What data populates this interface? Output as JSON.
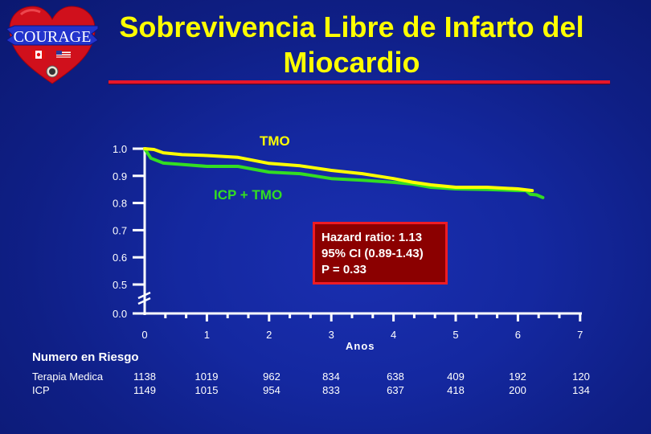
{
  "slide": {
    "title_line1": "Sobrevivencia Libre de Infarto del",
    "title_line2": "Miocardio",
    "logo": {
      "text": "COURAGE",
      "icon": "heart-logo-icon",
      "flags": [
        "canada-flag-icon",
        "usa-flag-icon"
      ],
      "seal": "va-seal-icon"
    }
  },
  "colors": {
    "background": "#1428a0",
    "title": "#ffff00",
    "underline": "#e8162a",
    "tmo": "#ffff00",
    "icp_tmo": "#33dd22",
    "stats_box_bg": "#8b0000",
    "stats_box_border": "#ee1c24"
  },
  "stats": {
    "line1": "Hazard ratio: 1.13",
    "line2": "95% CI (0.89-1.43)",
    "line3": "P = 0.33"
  },
  "risk_table": {
    "title": "Numero en Riesgo",
    "columns": [
      "0",
      "1",
      "2",
      "3",
      "4",
      "5",
      "6",
      "7"
    ],
    "rows": [
      {
        "label": "Terapia Medica",
        "values": [
          "1138",
          "1019",
          "962",
          "834",
          "638",
          "409",
          "192",
          "120"
        ]
      },
      {
        "label": "ICP",
        "values": [
          "1149",
          "1015",
          "954",
          "833",
          "637",
          "418",
          "200",
          "134"
        ]
      }
    ]
  },
  "chart_data": {
    "type": "line",
    "title": "Sobrevivencia Libre de Infarto del Miocardio",
    "xlabel": "Anos",
    "ylabel": "",
    "xlim": [
      0,
      7
    ],
    "ylim": [
      0.0,
      1.0
    ],
    "y_axis_break": "between 0.0 and 0.5",
    "x_ticks": [
      "0",
      "1",
      "2",
      "3",
      "4",
      "5",
      "6",
      "7"
    ],
    "x_minor_ticks_per_year": 2,
    "y_ticks": [
      "0.0",
      "0.5",
      "0.6",
      "0.7",
      "0.8",
      "0.9",
      "1.0"
    ],
    "grid": false,
    "legend_position": "inline labels",
    "series": [
      {
        "name": "TMO",
        "color": "#ffff00",
        "x": [
          0,
          0.15,
          0.3,
          0.6,
          1.0,
          1.5,
          2.0,
          2.5,
          3.0,
          3.5,
          4.0,
          4.3,
          4.6,
          5.0,
          5.5,
          6.0,
          6.23
        ],
        "values": [
          1.0,
          0.997,
          0.985,
          0.978,
          0.975,
          0.968,
          0.946,
          0.937,
          0.92,
          0.908,
          0.89,
          0.877,
          0.867,
          0.858,
          0.858,
          0.852,
          0.846
        ]
      },
      {
        "name": "ICP + TMO",
        "color": "#33dd22",
        "x": [
          0,
          0.1,
          0.3,
          0.6,
          1.0,
          1.5,
          2.0,
          2.5,
          3.0,
          3.5,
          4.0,
          4.3,
          4.6,
          5.0,
          5.5,
          6.0,
          6.13,
          6.2,
          6.3,
          6.4
        ],
        "values": [
          1.0,
          0.965,
          0.947,
          0.942,
          0.935,
          0.935,
          0.914,
          0.908,
          0.89,
          0.884,
          0.876,
          0.87,
          0.858,
          0.852,
          0.85,
          0.846,
          0.846,
          0.832,
          0.83,
          0.82
        ]
      }
    ],
    "annotations": [
      "Hazard ratio: 1.13",
      "95% CI (0.89-1.43)",
      "P = 0.33"
    ]
  }
}
